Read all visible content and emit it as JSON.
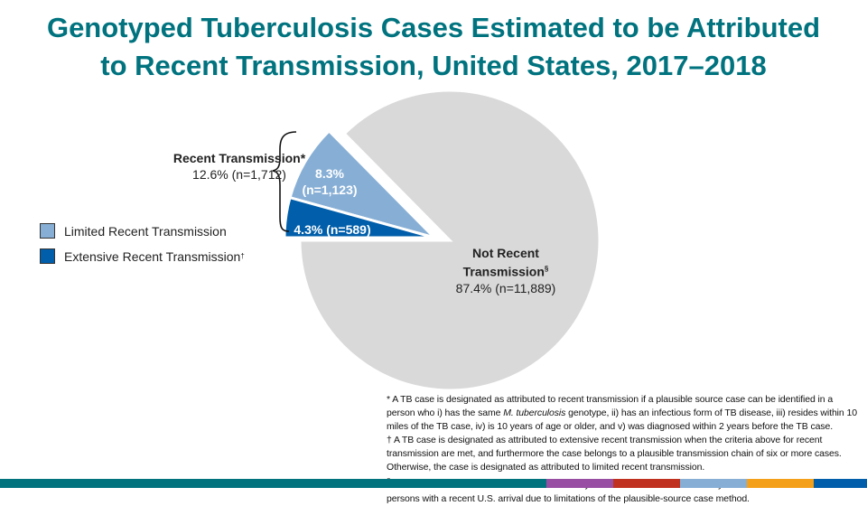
{
  "title_line1": "Genotyped Tuberculosis Cases Estimated to be Attributed",
  "title_line2": "to Recent Transmission, United States, 2017–2018",
  "chart_data": {
    "type": "pie",
    "title": "Genotyped Tuberculosis Cases Estimated to be Attributed to Recent Transmission, United States, 2017–2018",
    "slices": [
      {
        "name": "Extensive Recent Transmission",
        "percent": 4.3,
        "n": 589,
        "label": "4.3% (n=589)",
        "color": "#005eaa"
      },
      {
        "name": "Limited Recent Transmission",
        "percent": 8.3,
        "n": 1123,
        "label_pct": "8.3%",
        "label_n": "(n=1,123)",
        "color": "#87afd6"
      },
      {
        "name": "Not Recent Transmission",
        "percent": 87.4,
        "n": 11889,
        "label_name": "Not Recent",
        "label_name2": "Transmission",
        "label_sup": "§",
        "label_val": "87.4% (n=11,889)",
        "color": "#d9d9d9"
      }
    ],
    "group": {
      "name": "Recent Transmission",
      "sup": "*",
      "value": "12.6% (n=1,712)"
    },
    "legend": [
      {
        "label": "Limited Recent Transmission",
        "sup": "",
        "color": "#87afd6"
      },
      {
        "label": "Extensive Recent Transmission",
        "sup": "†",
        "color": "#005eaa"
      }
    ],
    "legend_position": "left"
  },
  "footnotes": {
    "star_a": "* A TB case is designated as attributed to recent transmission if a plausible source case can be identified in a person who i) has the same ",
    "star_italic": "M. tuberculosis",
    "star_b": " genotype, ii) has an infectious form of TB disease, iii) resides within 10 miles of the TB case, iv) is 10 years of age or older, and v) was diagnosed within 2 years before the TB case.",
    "dagger": "† A TB case is designated as attributed to extensive recent transmission when the criteria above for recent transmission are met, and furthermore the case belongs to a plausible transmission chain of six or more cases. Otherwise, the case is designated as attributed to limited recent transmission.",
    "section_sym": "§",
    "section": " Cases not attributed to recent transmission may be misclassified in children <5 years old or indeterminate in persons with a recent U.S. arrival due to limitations of the plausible-source case method."
  },
  "footer_colors": [
    "#00737f",
    "#984ea3",
    "#c1311f",
    "#87afd6",
    "#f5a01a",
    "#005eaa"
  ]
}
